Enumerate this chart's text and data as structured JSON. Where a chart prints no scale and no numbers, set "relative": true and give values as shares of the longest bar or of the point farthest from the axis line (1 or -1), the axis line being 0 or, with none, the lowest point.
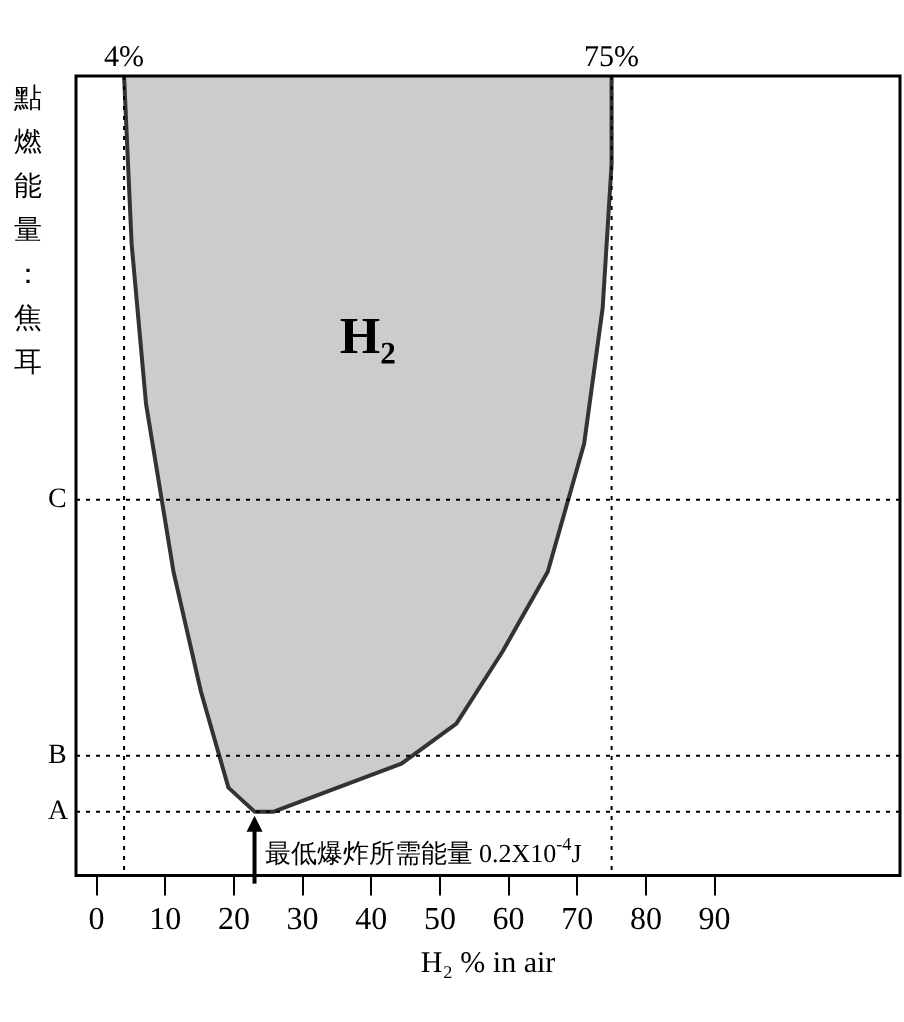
{
  "chart_data": {
    "type": "area",
    "relative": true,
    "xlabel": "H₂ % in air",
    "ylabel": "點燃能量：焦耳",
    "xlim": [
      -3,
      117
    ],
    "xticks": [
      0,
      10,
      20,
      30,
      40,
      50,
      60,
      70,
      80,
      90
    ],
    "series": [
      {
        "name": "H₂",
        "color": "#333333",
        "x": [
          4,
          5.1,
          7.2,
          11.2,
          15.2,
          19.2,
          23,
          25.8,
          35.1,
          44.4,
          52.4,
          59.1,
          65.7,
          71,
          73.7,
          75,
          75
        ],
        "values": [
          1,
          0.79,
          0.59,
          0.38,
          0.23,
          0.11,
          0.08,
          0.08,
          0.11,
          0.14,
          0.19,
          0.28,
          0.38,
          0.54,
          0.71,
          0.89,
          1
        ]
      }
    ],
    "ref_lines": [
      {
        "axis": "y",
        "value": 0.08,
        "label": "A",
        "line_style": "dotted"
      },
      {
        "axis": "y",
        "value": 0.15,
        "label": "B",
        "line_style": "dotted"
      },
      {
        "axis": "y",
        "value": 0.47,
        "label": "C",
        "line_style": "dotted"
      },
      {
        "axis": "x",
        "value": 4,
        "label": "4%",
        "line_style": "dotted"
      },
      {
        "axis": "x",
        "value": 75,
        "label": "75%",
        "line_style": "dotted"
      }
    ],
    "annotations": [
      {
        "text": "最低爆炸所需能量 0.2X10$^{-4}$J",
        "x": 23,
        "y": 0.08
      }
    ],
    "grid": false,
    "legend": false
  }
}
